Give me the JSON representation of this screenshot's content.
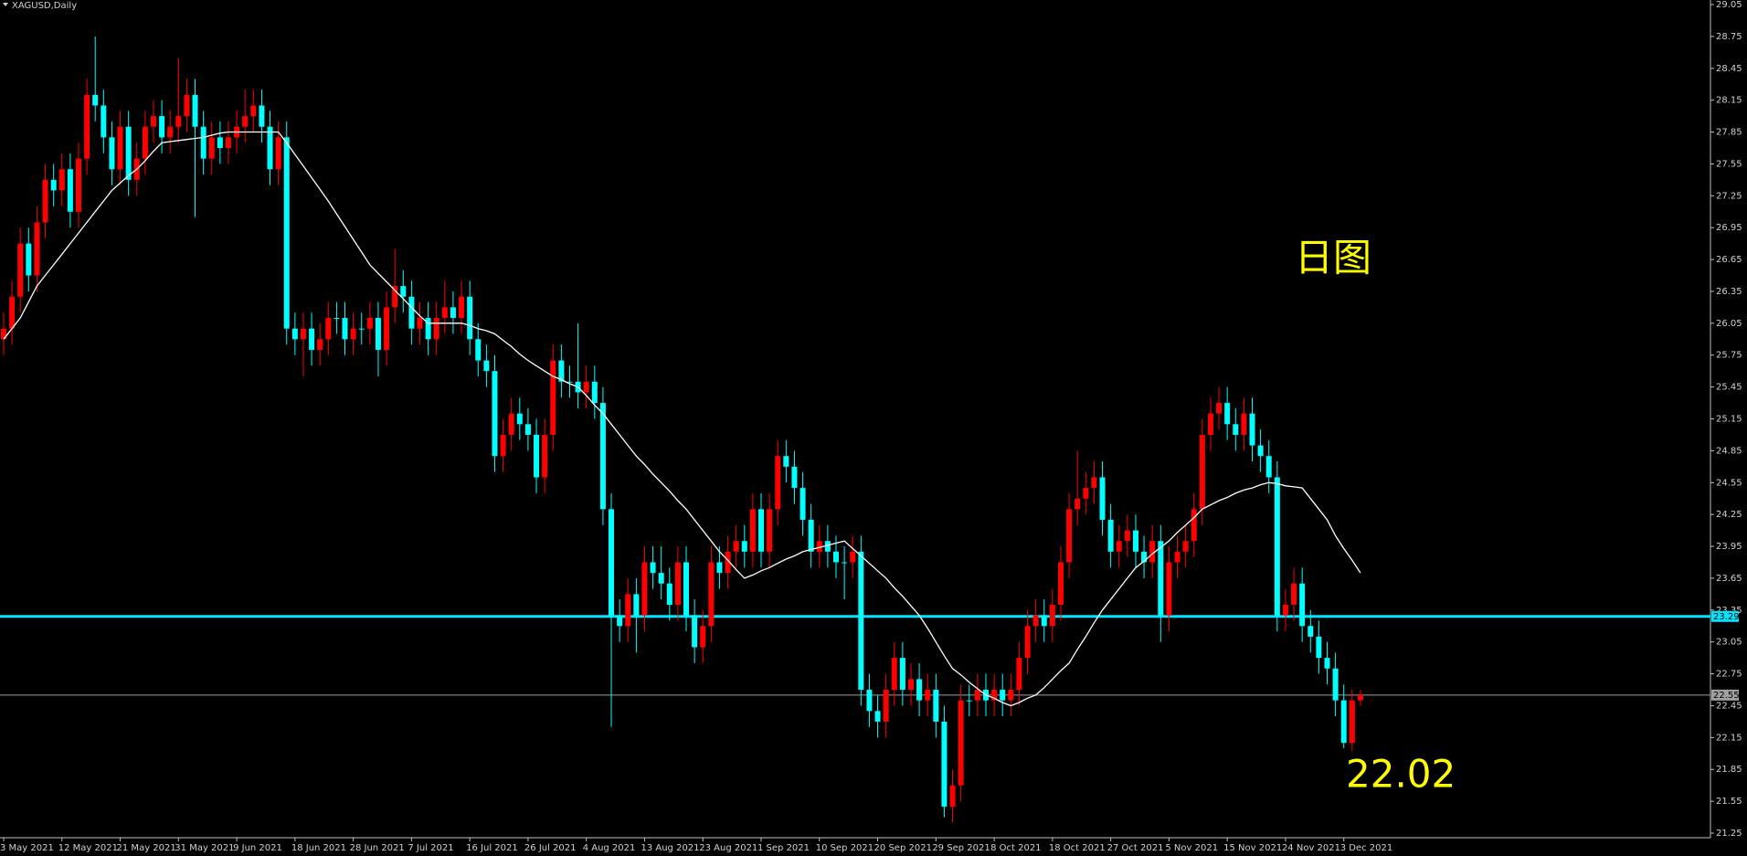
{
  "chart_data": {
    "type": "candlestick",
    "title": "XAGUSD,Daily",
    "categories": [
      "3 May 2021",
      null,
      null,
      null,
      null,
      null,
      null,
      "12 May 2021",
      null,
      null,
      null,
      null,
      null,
      null,
      "21 May 2021",
      null,
      null,
      null,
      null,
      null,
      null,
      "31 May 2021",
      null,
      null,
      null,
      null,
      null,
      null,
      "9 Jun 2021",
      null,
      null,
      null,
      null,
      null,
      null,
      "18 Jun 2021",
      null,
      null,
      null,
      null,
      null,
      null,
      "28 Jun 2021",
      null,
      null,
      null,
      null,
      null,
      null,
      "7 Jul 2021",
      null,
      null,
      null,
      null,
      null,
      null,
      "16 Jul 2021",
      null,
      null,
      null,
      null,
      null,
      null,
      "26 Jul 2021",
      null,
      null,
      null,
      null,
      null,
      null,
      "4 Aug 2021",
      null,
      null,
      null,
      null,
      null,
      null,
      "13 Aug 2021",
      null,
      null,
      null,
      null,
      null,
      null,
      "23 Aug 2021",
      null,
      null,
      null,
      null,
      null,
      null,
      "1 Sep 2021",
      null,
      null,
      null,
      null,
      null,
      null,
      "10 Sep 2021",
      null,
      null,
      null,
      null,
      null,
      null,
      "20 Sep 2021",
      null,
      null,
      null,
      null,
      null,
      null,
      "29 Sep 2021",
      null,
      null,
      null,
      null,
      null,
      null,
      "8 Oct 2021",
      null,
      null,
      null,
      null,
      null,
      null,
      "18 Oct 2021",
      null,
      null,
      null,
      null,
      null,
      null,
      "27 Oct 2021",
      null,
      null,
      null,
      null,
      null,
      null,
      "5 Nov 2021",
      null,
      null,
      null,
      null,
      null,
      null,
      "15 Nov 2021",
      null,
      null,
      null,
      null,
      null,
      null,
      "24 Nov 2021",
      null,
      null,
      null,
      null,
      null,
      null,
      "3 Dec 2021",
      null,
      null
    ],
    "ohlc": [
      [
        25.9,
        26.15,
        25.75,
        26.0
      ],
      [
        26.0,
        26.45,
        25.85,
        26.3
      ],
      [
        26.3,
        26.95,
        26.15,
        26.8
      ],
      [
        26.8,
        26.95,
        26.35,
        26.5
      ],
      [
        26.5,
        27.15,
        26.35,
        27.0
      ],
      [
        27.0,
        27.55,
        26.85,
        27.4
      ],
      [
        27.4,
        27.55,
        27.15,
        27.3
      ],
      [
        27.3,
        27.65,
        27.15,
        27.5
      ],
      [
        27.5,
        27.65,
        26.95,
        27.1
      ],
      [
        27.1,
        27.75,
        26.95,
        27.6
      ],
      [
        27.6,
        28.35,
        27.45,
        28.2
      ],
      [
        28.2,
        28.75,
        27.95,
        28.1
      ],
      [
        28.1,
        28.25,
        27.65,
        27.8
      ],
      [
        27.8,
        27.95,
        27.35,
        27.5
      ],
      [
        27.5,
        28.05,
        27.35,
        27.9
      ],
      [
        27.9,
        28.05,
        27.25,
        27.4
      ],
      [
        27.4,
        27.75,
        27.25,
        27.6
      ],
      [
        27.6,
        28.05,
        27.45,
        27.9
      ],
      [
        27.9,
        28.15,
        27.75,
        28.0
      ],
      [
        28.0,
        28.15,
        27.65,
        27.8
      ],
      [
        27.8,
        28.05,
        27.65,
        27.9
      ],
      [
        27.9,
        28.55,
        27.75,
        28.0
      ],
      [
        28.0,
        28.35,
        27.85,
        28.2
      ],
      [
        28.2,
        28.35,
        27.05,
        27.9
      ],
      [
        27.9,
        28.05,
        27.45,
        27.6
      ],
      [
        27.6,
        27.95,
        27.45,
        27.8
      ],
      [
        27.8,
        27.95,
        27.55,
        27.7
      ],
      [
        27.7,
        27.95,
        27.55,
        27.8
      ],
      [
        27.8,
        28.05,
        27.65,
        27.9
      ],
      [
        27.9,
        28.25,
        27.75,
        28.0
      ],
      [
        28.0,
        28.25,
        27.85,
        28.1
      ],
      [
        28.1,
        28.25,
        27.75,
        27.9
      ],
      [
        27.9,
        28.05,
        27.35,
        27.5
      ],
      [
        27.5,
        27.95,
        27.35,
        27.8
      ],
      [
        27.8,
        27.95,
        25.85,
        26.0
      ],
      [
        26.0,
        26.15,
        25.75,
        25.9
      ],
      [
        25.9,
        26.15,
        25.55,
        26.0
      ],
      [
        26.0,
        26.15,
        25.65,
        25.8
      ],
      [
        25.8,
        26.05,
        25.65,
        25.9
      ],
      [
        25.9,
        26.25,
        25.75,
        26.1
      ],
      [
        26.1,
        26.25,
        25.95,
        26.1
      ],
      [
        26.1,
        26.25,
        25.75,
        25.9
      ],
      [
        25.9,
        26.15,
        25.75,
        26.0
      ],
      [
        26.0,
        26.15,
        25.85,
        26.0
      ],
      [
        26.0,
        26.25,
        25.85,
        26.1
      ],
      [
        26.1,
        26.25,
        25.55,
        25.8
      ],
      [
        25.8,
        26.35,
        25.65,
        26.2
      ],
      [
        26.2,
        26.75,
        26.05,
        26.4
      ],
      [
        26.4,
        26.55,
        26.15,
        26.3
      ],
      [
        26.3,
        26.45,
        25.85,
        26.0
      ],
      [
        26.0,
        26.25,
        25.85,
        26.1
      ],
      [
        26.1,
        26.25,
        25.75,
        25.9
      ],
      [
        25.9,
        26.25,
        25.75,
        26.1
      ],
      [
        26.1,
        26.45,
        25.95,
        26.2
      ],
      [
        26.2,
        26.35,
        25.95,
        26.1
      ],
      [
        26.1,
        26.45,
        25.95,
        26.3
      ],
      [
        26.3,
        26.45,
        25.75,
        25.9
      ],
      [
        25.9,
        26.05,
        25.55,
        25.7
      ],
      [
        25.7,
        25.85,
        25.45,
        25.6
      ],
      [
        25.6,
        25.75,
        24.65,
        24.8
      ],
      [
        24.8,
        25.15,
        24.65,
        25.0
      ],
      [
        25.0,
        25.35,
        24.85,
        25.2
      ],
      [
        25.2,
        25.35,
        24.95,
        25.1
      ],
      [
        25.1,
        25.25,
        24.85,
        25.0
      ],
      [
        25.0,
        25.15,
        24.45,
        24.6
      ],
      [
        24.6,
        25.15,
        24.45,
        25.0
      ],
      [
        25.0,
        25.85,
        24.85,
        25.7
      ],
      [
        25.7,
        25.85,
        25.35,
        25.5
      ],
      [
        25.5,
        25.65,
        25.35,
        25.5
      ],
      [
        25.5,
        26.05,
        25.25,
        25.4
      ],
      [
        25.4,
        25.65,
        25.25,
        25.5
      ],
      [
        25.5,
        25.65,
        25.15,
        25.3
      ],
      [
        25.3,
        25.45,
        24.15,
        24.3
      ],
      [
        24.3,
        24.45,
        22.25,
        23.3
      ],
      [
        23.3,
        23.45,
        23.05,
        23.2
      ],
      [
        23.2,
        23.65,
        23.05,
        23.5
      ],
      [
        23.5,
        23.65,
        22.95,
        23.3
      ],
      [
        23.3,
        23.95,
        23.15,
        23.8
      ],
      [
        23.8,
        23.95,
        23.55,
        23.7
      ],
      [
        23.7,
        23.95,
        23.45,
        23.6
      ],
      [
        23.6,
        23.75,
        23.25,
        23.4
      ],
      [
        23.4,
        23.95,
        23.25,
        23.8
      ],
      [
        23.8,
        23.95,
        23.15,
        23.3
      ],
      [
        23.3,
        23.45,
        22.85,
        23.0
      ],
      [
        23.0,
        23.35,
        22.85,
        23.2
      ],
      [
        23.2,
        23.95,
        23.05,
        23.8
      ],
      [
        23.8,
        23.95,
        23.55,
        23.7
      ],
      [
        23.7,
        24.05,
        23.55,
        23.9
      ],
      [
        23.9,
        24.15,
        23.75,
        24.0
      ],
      [
        24.0,
        24.15,
        23.75,
        23.9
      ],
      [
        23.9,
        24.45,
        23.75,
        24.3
      ],
      [
        24.3,
        24.45,
        23.75,
        23.9
      ],
      [
        23.9,
        24.45,
        23.75,
        24.3
      ],
      [
        24.3,
        24.95,
        24.15,
        24.8
      ],
      [
        24.8,
        24.95,
        24.55,
        24.7
      ],
      [
        24.7,
        24.85,
        24.35,
        24.5
      ],
      [
        24.5,
        24.65,
        24.05,
        24.2
      ],
      [
        24.2,
        24.35,
        23.75,
        23.9
      ],
      [
        23.9,
        24.15,
        23.75,
        24.0
      ],
      [
        24.0,
        24.15,
        23.75,
        23.9
      ],
      [
        23.9,
        24.05,
        23.65,
        23.8
      ],
      [
        23.8,
        23.95,
        23.45,
        23.8
      ],
      [
        23.8,
        24.05,
        23.65,
        23.9
      ],
      [
        23.9,
        24.05,
        22.45,
        22.6
      ],
      [
        22.6,
        22.75,
        22.25,
        22.4
      ],
      [
        22.4,
        22.55,
        22.15,
        22.3
      ],
      [
        22.3,
        22.75,
        22.15,
        22.6
      ],
      [
        22.6,
        23.05,
        22.45,
        22.9
      ],
      [
        22.9,
        23.05,
        22.45,
        22.6
      ],
      [
        22.6,
        22.85,
        22.45,
        22.7
      ],
      [
        22.7,
        22.85,
        22.35,
        22.5
      ],
      [
        22.5,
        22.75,
        22.35,
        22.6
      ],
      [
        22.6,
        22.75,
        22.15,
        22.3
      ],
      [
        22.3,
        22.45,
        21.4,
        21.5
      ],
      [
        21.5,
        21.85,
        21.35,
        21.7
      ],
      [
        21.7,
        22.65,
        21.55,
        22.5
      ],
      [
        22.5,
        22.65,
        22.35,
        22.5
      ],
      [
        22.5,
        22.75,
        22.35,
        22.6
      ],
      [
        22.6,
        22.75,
        22.35,
        22.5
      ],
      [
        22.5,
        22.75,
        22.35,
        22.6
      ],
      [
        22.6,
        22.75,
        22.35,
        22.5
      ],
      [
        22.5,
        22.75,
        22.35,
        22.6
      ],
      [
        22.6,
        23.05,
        22.45,
        22.9
      ],
      [
        22.9,
        23.35,
        22.75,
        23.2
      ],
      [
        23.2,
        23.45,
        23.05,
        23.3
      ],
      [
        23.3,
        23.45,
        23.05,
        23.2
      ],
      [
        23.2,
        23.55,
        23.05,
        23.4
      ],
      [
        23.4,
        23.95,
        23.25,
        23.8
      ],
      [
        23.8,
        24.45,
        23.65,
        24.3
      ],
      [
        24.3,
        24.85,
        24.15,
        24.4
      ],
      [
        24.4,
        24.65,
        24.25,
        24.5
      ],
      [
        24.5,
        24.75,
        24.35,
        24.6
      ],
      [
        24.6,
        24.75,
        24.05,
        24.2
      ],
      [
        24.2,
        24.35,
        23.75,
        23.9
      ],
      [
        23.9,
        24.15,
        23.75,
        24.0
      ],
      [
        24.0,
        24.25,
        23.85,
        24.1
      ],
      [
        24.1,
        24.25,
        23.75,
        23.9
      ],
      [
        23.9,
        24.05,
        23.65,
        23.8
      ],
      [
        23.8,
        24.15,
        23.65,
        24.0
      ],
      [
        24.0,
        24.15,
        23.05,
        23.3
      ],
      [
        23.3,
        23.95,
        23.15,
        23.8
      ],
      [
        23.8,
        24.05,
        23.65,
        23.9
      ],
      [
        23.9,
        24.15,
        23.75,
        24.0
      ],
      [
        24.0,
        24.45,
        23.85,
        24.3
      ],
      [
        24.3,
        25.15,
        24.15,
        25.0
      ],
      [
        25.0,
        25.35,
        24.85,
        25.2
      ],
      [
        25.2,
        25.45,
        25.05,
        25.3
      ],
      [
        25.3,
        25.45,
        24.95,
        25.1
      ],
      [
        25.1,
        25.25,
        24.85,
        25.0
      ],
      [
        25.0,
        25.35,
        24.85,
        25.2
      ],
      [
        25.2,
        25.35,
        24.75,
        24.9
      ],
      [
        24.9,
        25.05,
        24.65,
        24.8
      ],
      [
        24.8,
        24.95,
        24.45,
        24.6
      ],
      [
        24.6,
        24.75,
        23.15,
        23.3
      ],
      [
        23.3,
        23.55,
        23.15,
        23.4
      ],
      [
        23.4,
        23.75,
        23.25,
        23.6
      ],
      [
        23.6,
        23.75,
        23.05,
        23.2
      ],
      [
        23.2,
        23.35,
        22.95,
        23.1
      ],
      [
        23.1,
        23.25,
        22.75,
        22.9
      ],
      [
        22.9,
        23.05,
        22.65,
        22.8
      ],
      [
        22.8,
        22.95,
        22.35,
        22.5
      ],
      [
        22.5,
        22.65,
        22.05,
        22.1
      ],
      [
        22.1,
        22.6,
        22.02,
        22.5
      ],
      [
        22.5,
        22.6,
        22.45,
        22.55
      ]
    ],
    "up_color": "#ff0000",
    "down_color": "#00ffff",
    "ma": {
      "color": "#ffffff",
      "values": [
        25.9,
        26.0,
        26.1,
        26.25,
        26.4,
        26.5,
        26.6,
        26.7,
        26.8,
        26.9,
        27.0,
        27.1,
        27.2,
        27.3,
        27.37,
        27.44,
        27.5,
        27.58,
        27.67,
        27.75,
        27.76,
        27.77,
        27.78,
        27.79,
        27.8,
        27.82,
        27.84,
        27.85,
        27.85,
        27.85,
        27.85,
        27.85,
        27.85,
        27.85,
        27.75,
        27.64,
        27.53,
        27.42,
        27.31,
        27.2,
        27.08,
        26.96,
        26.84,
        26.72,
        26.6,
        26.52,
        26.44,
        26.36,
        26.28,
        26.2,
        26.12,
        26.05,
        26.05,
        26.05,
        26.05,
        26.05,
        26.03,
        26.0,
        25.98,
        25.95,
        25.89,
        25.83,
        25.76,
        25.7,
        25.65,
        25.6,
        25.55,
        25.52,
        25.48,
        25.45,
        25.37,
        25.28,
        25.2,
        25.1,
        25.0,
        24.9,
        24.8,
        24.72,
        24.63,
        24.55,
        24.47,
        24.38,
        24.3,
        24.2,
        24.1,
        24.0,
        23.9,
        23.82,
        23.73,
        23.65,
        23.68,
        23.72,
        23.75,
        23.79,
        23.83,
        23.86,
        23.9,
        23.92,
        23.94,
        23.96,
        23.98,
        24.0,
        23.93,
        23.86,
        23.79,
        23.72,
        23.65,
        23.56,
        23.48,
        23.39,
        23.3,
        23.18,
        23.05,
        22.92,
        22.8,
        22.74,
        22.67,
        22.61,
        22.55,
        22.52,
        22.48,
        22.45,
        22.48,
        22.52,
        22.55,
        22.62,
        22.7,
        22.78,
        22.85,
        22.98,
        23.1,
        23.23,
        23.35,
        23.45,
        23.55,
        23.65,
        23.75,
        23.81,
        23.88,
        23.94,
        24.0,
        24.08,
        24.15,
        24.22,
        24.3,
        24.34,
        24.38,
        24.41,
        24.45,
        24.48,
        24.5,
        24.53,
        24.55,
        24.54,
        24.52,
        24.51,
        24.5,
        24.4,
        24.3,
        24.2,
        24.05,
        23.93,
        23.82,
        23.7
      ]
    },
    "ylim": [
      21.25,
      29.05
    ],
    "yticks": [
      21.25,
      21.55,
      21.85,
      22.15,
      22.45,
      22.75,
      23.05,
      23.35,
      23.65,
      23.95,
      24.25,
      24.55,
      24.85,
      25.15,
      25.45,
      25.75,
      26.05,
      26.35,
      26.65,
      26.95,
      27.25,
      27.55,
      27.85,
      28.15,
      28.45,
      28.75,
      29.05
    ],
    "hlines": [
      {
        "value": 23.29,
        "color": "#00e5ff"
      },
      {
        "value": 22.55,
        "color": "#a0a0a0"
      }
    ],
    "annotations": [
      {
        "text": "日图",
        "color": "#ffff00"
      },
      {
        "text": "22.02",
        "color": "#ffff00"
      }
    ]
  }
}
